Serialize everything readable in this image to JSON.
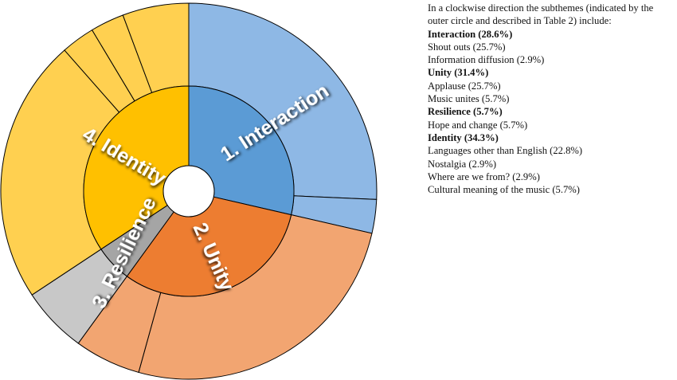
{
  "chart_data": {
    "type": "sunburst",
    "inner_ring": [
      {
        "label": "1. Interaction",
        "value": 28.6,
        "color": "#5b9bd5"
      },
      {
        "label": "2. Unity",
        "value": 31.4,
        "color": "#ed7d31"
      },
      {
        "label": "3. Resilience",
        "value": 5.7,
        "color": "#a5a5a5"
      },
      {
        "label": "4. Identity",
        "value": 34.3,
        "color": "#ffc000"
      }
    ],
    "outer_ring": [
      {
        "parent": "1. Interaction",
        "label": "Shout outs",
        "value": 25.7,
        "color": "#8eb8e5"
      },
      {
        "parent": "1. Interaction",
        "label": "Information diffusion",
        "value": 2.9,
        "color": "#8eb8e5"
      },
      {
        "parent": "2. Unity",
        "label": "Applause",
        "value": 25.7,
        "color": "#f2a571"
      },
      {
        "parent": "2. Unity",
        "label": "Music unites",
        "value": 5.7,
        "color": "#f2a571"
      },
      {
        "parent": "3. Resilience",
        "label": "Hope and change",
        "value": 5.7,
        "color": "#c8c8c8"
      },
      {
        "parent": "4. Identity",
        "label": "Languages other than English",
        "value": 22.8,
        "color": "#ffd050"
      },
      {
        "parent": "4. Identity",
        "label": "Nostalgia",
        "value": 2.9,
        "color": "#ffd050"
      },
      {
        "parent": "4. Identity",
        "label": "Where are we from?",
        "value": 2.9,
        "color": "#ffd050"
      },
      {
        "parent": "4. Identity",
        "label": "Cultural meaning of the music",
        "value": 5.7,
        "color": "#ffd050"
      }
    ],
    "direction": "clockwise from top"
  },
  "legend": {
    "intro": "In a clockwise direction the subthemes (indicated by the outer circle and described in Table 2) include:",
    "rows": [
      {
        "text": "Interaction (28.6%)",
        "bold": true
      },
      {
        "text": "Shout outs (25.7%)",
        "bold": false
      },
      {
        "text": "Information diffusion (2.9%)",
        "bold": false
      },
      {
        "text": "Unity (31.4%)",
        "bold": true
      },
      {
        "text": "Applause (25.7%)",
        "bold": false
      },
      {
        "text": "Music unites (5.7%)",
        "bold": false
      },
      {
        "text": "Resilience (5.7%)",
        "bold": true
      },
      {
        "text": "Hope and change (5.7%)",
        "bold": false
      },
      {
        "text": "Identity (34.3%)",
        "bold": true
      },
      {
        "text": "Languages other than English (22.8%)",
        "bold": false
      },
      {
        "text": "Nostalgia (2.9%)",
        "bold": false
      },
      {
        "text": "Where are we from? (2.9%)",
        "bold": false
      },
      {
        "text": "Cultural meaning of the music (5.7%)",
        "bold": false
      }
    ]
  }
}
